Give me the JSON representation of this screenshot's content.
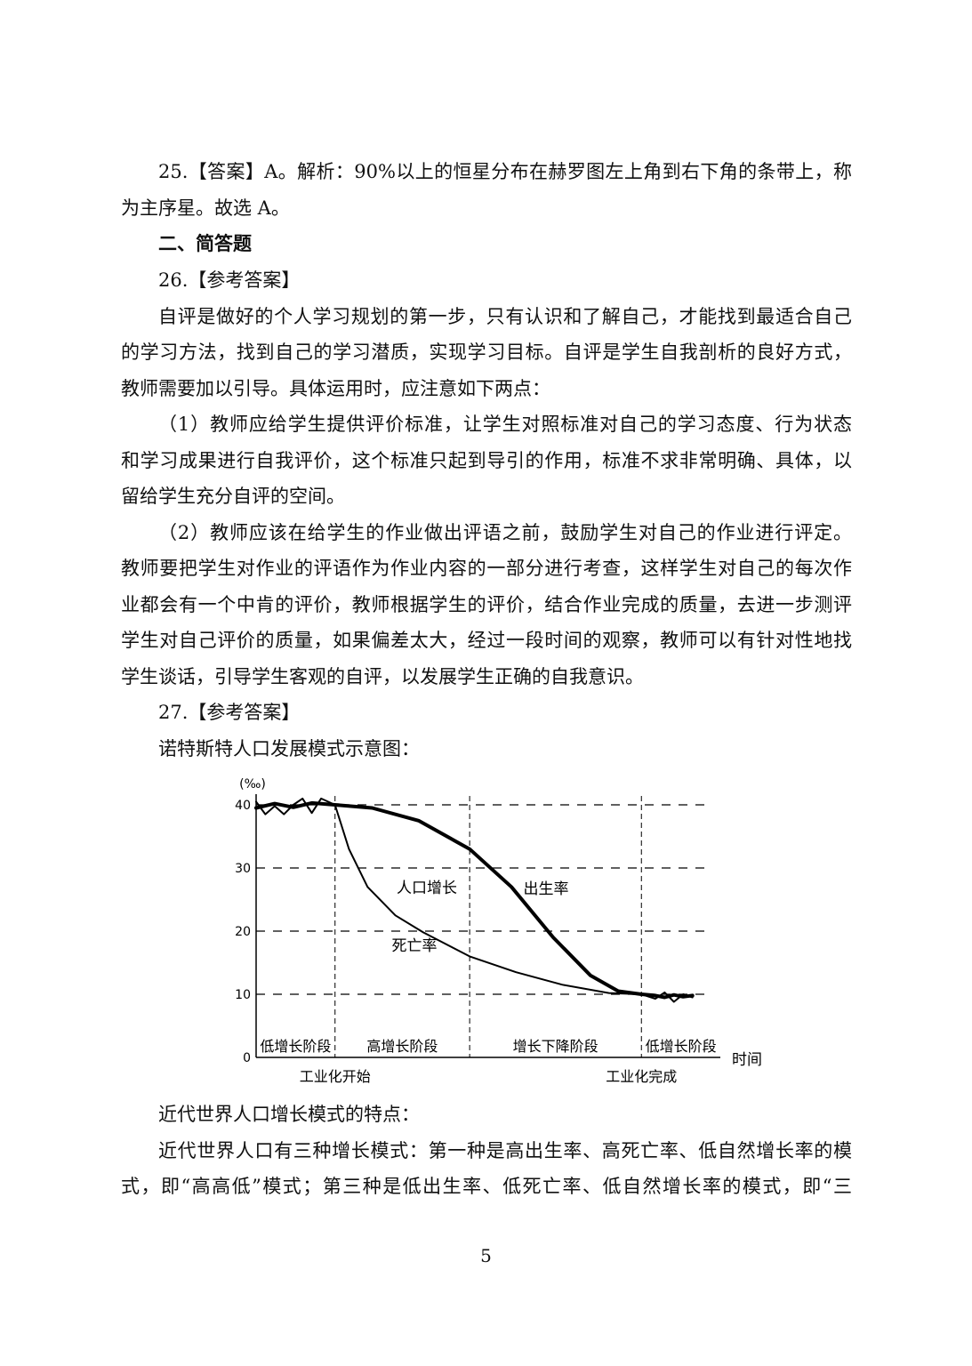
{
  "q25": {
    "line1": "25.【答案】A。解析：90%以上的恒星分布在赫罗图左上角到右下角的条带上，称",
    "line2": "为主序星。故选 A。"
  },
  "section_heading": "二、简答题",
  "q26": {
    "header": "26.【参考答案】",
    "p1": [
      "自评是做好的个人学习规划的第一步，只有认识和了解自己，才能找到最适合自己",
      "的学习方法，找到自己的学习潜质，实现学习目标。自评是学生自我剖析的良好方式，",
      "教师需要加以引导。具体运用时，应注意如下两点："
    ],
    "p2": [
      "（1）教师应给学生提供评价标准，让学生对照标准对自己的学习态度、行为状态",
      "和学习成果进行自我评价，这个标准只起到导引的作用，标准不求非常明确、具体，以",
      "留给学生充分自评的空间。"
    ],
    "p3": [
      "（2）教师应该在给学生的作业做出评语之前，鼓励学生对自己的作业进行评定。",
      "教师要把学生对作业的评语作为作业内容的一部分进行考查，这样学生对自己的每次作",
      "业都会有一个中肯的评价，教师根据学生的评价，结合作业完成的质量，去进一步测评",
      "学生对自己评价的质量，如果偏差太大，经过一段时间的观察，教师可以有针对性地找",
      "学生谈话，引导学生客观的自评，以发展学生正确的自我意识。"
    ]
  },
  "q27": {
    "header": "27.【参考答案】",
    "figure_caption": "诺特斯特人口发展模式示意图：",
    "after_chart_heading": "近代世界人口增长模式的特点：",
    "p1": [
      "近代世界人口有三种增长模式：第一种是高出生率、高死亡率、低自然增长率的模",
      "式，即“高高低”模式；第三种是低出生率、低死亡率、低自然增长率的模式，即“三"
    ]
  },
  "page_number": "5",
  "chart_data": {
    "type": "line",
    "ylabel": "(‰)",
    "xlabel": "时间",
    "yticks": [
      0,
      10,
      20,
      30,
      40
    ],
    "ylim": [
      0,
      43
    ],
    "x_range": [
      0,
      100
    ],
    "stage_boundaries": [
      17,
      46,
      83
    ],
    "stages": [
      "低增长阶段",
      "高增长阶段",
      "增长下降阶段",
      "低增长阶段"
    ],
    "x_markers": [
      {
        "label": "工业化开始",
        "x": 17
      },
      {
        "label": "工业化完成",
        "x": 83
      }
    ],
    "annotations": [
      "人口增长",
      "出生率",
      "死亡率"
    ],
    "series": [
      {
        "name": "出生率",
        "x": [
          0,
          4,
          8,
          12,
          17,
          25,
          35,
          46,
          55,
          64,
          72,
          78,
          83,
          86,
          88,
          90,
          92,
          94
        ],
        "y": [
          39.5,
          40.2,
          39.6,
          40.3,
          40,
          39.5,
          37.5,
          33,
          27,
          19,
          13,
          10.5,
          10,
          9.8,
          9.5,
          9.9,
          9.6,
          9.8
        ]
      },
      {
        "name": "死亡率",
        "x": [
          0,
          2,
          4,
          6,
          8,
          10,
          12,
          14,
          17,
          20,
          24,
          30,
          36,
          46,
          56,
          66,
          76,
          83,
          86,
          88,
          90,
          92,
          94
        ],
        "y": [
          40.5,
          38.5,
          39.8,
          38.5,
          40,
          41,
          38.7,
          41,
          40,
          33,
          27,
          22.5,
          19.8,
          16,
          13.5,
          11.5,
          10.2,
          10,
          9.3,
          10.3,
          8.8,
          10,
          9.5
        ]
      }
    ]
  }
}
